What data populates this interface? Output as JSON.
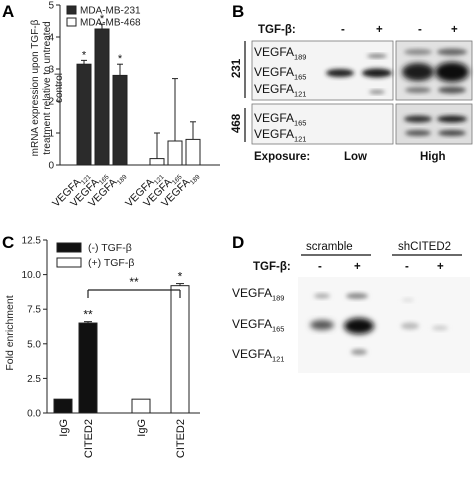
{
  "figure": {
    "panels": {
      "A": "A",
      "B": "B",
      "C": "C",
      "D": "D"
    },
    "sub": {
      "189": "189",
      "165": "165",
      "121": "121"
    }
  },
  "chart_data": [
    {
      "panel": "A",
      "type": "bar",
      "ylabel_lines": [
        "mRNA expression upon TGF-β",
        "treatment relative to untreated",
        "control"
      ],
      "ylim": [
        0,
        5
      ],
      "yticks": [
        0,
        1,
        2,
        3,
        4,
        5
      ],
      "legend": [
        "MDA-MB-231",
        "MDA-MB-468"
      ],
      "groups": [
        {
          "name": "MDA-MB-231",
          "fill": "#2b2b2b",
          "bars": [
            {
              "base": "VEGFA",
              "sub": "121",
              "value": 3.15,
              "err": 0.12,
              "sig": "*"
            },
            {
              "base": "VEGFA",
              "sub": "165",
              "value": 4.25,
              "err": 0.15,
              "sig": "*"
            },
            {
              "base": "VEGFA",
              "sub": "189",
              "value": 2.8,
              "err": 0.35,
              "sig": "*"
            }
          ]
        },
        {
          "name": "MDA-MB-468",
          "fill": "#ffffff",
          "bars": [
            {
              "base": "VEGFA",
              "sub": "121",
              "value": 0.2,
              "err": 0.8,
              "sig": ""
            },
            {
              "base": "VEGFA",
              "sub": "165",
              "value": 0.75,
              "err": 1.95,
              "sig": ""
            },
            {
              "base": "VEGFA",
              "sub": "189",
              "value": 0.8,
              "err": 0.55,
              "sig": ""
            }
          ]
        }
      ]
    },
    {
      "panel": "C",
      "type": "bar",
      "ylabel": "Fold enrichment",
      "ylim": [
        0,
        12.5
      ],
      "yticks": [
        "0.0",
        "2.5",
        "5.0",
        "7.5",
        "10.0",
        "12.5"
      ],
      "legend": [
        "(-) TGF-β",
        "(+) TGF-β"
      ],
      "groups": [
        {
          "name": "(-) TGF-β",
          "fill": "#111111",
          "bars": [
            {
              "label": "IgG",
              "value": 1.0,
              "err": 0,
              "sig": ""
            },
            {
              "label": "CITED2",
              "value": 6.5,
              "err": 0.1,
              "sig": "**"
            }
          ]
        },
        {
          "name": "(+) TGF-β",
          "fill": "#ffffff",
          "bars": [
            {
              "label": "IgG",
              "value": 1.0,
              "err": 0,
              "sig": ""
            },
            {
              "label": "CITED2",
              "value": 9.2,
              "err": 0.15,
              "sig": "*"
            }
          ]
        }
      ],
      "bracket_label": "**"
    }
  ],
  "blotB": {
    "treatment_label": "TGF-β:",
    "lanes": [
      "-",
      "+",
      "-",
      "+"
    ],
    "cell_lines": [
      "231",
      "468"
    ],
    "bands_231": [
      {
        "base": "VEGFA",
        "sub": "189"
      },
      {
        "base": "VEGFA",
        "sub": "165"
      },
      {
        "base": "VEGFA",
        "sub": "121"
      }
    ],
    "bands_468": [
      {
        "base": "VEGFA",
        "sub": "165"
      },
      {
        "base": "VEGFA",
        "sub": "121"
      }
    ],
    "exposure_label": "Exposure:",
    "exposure_low": "Low",
    "exposure_high": "High"
  },
  "blotD": {
    "groups": [
      "scramble",
      "shCITED2"
    ],
    "treatment_label": "TGF-β:",
    "lanes": [
      "-",
      "+",
      "-",
      "+"
    ],
    "bands": [
      {
        "base": "VEGFA",
        "sub": "189"
      },
      {
        "base": "VEGFA",
        "sub": "165"
      },
      {
        "base": "VEGFA",
        "sub": "121"
      }
    ]
  }
}
